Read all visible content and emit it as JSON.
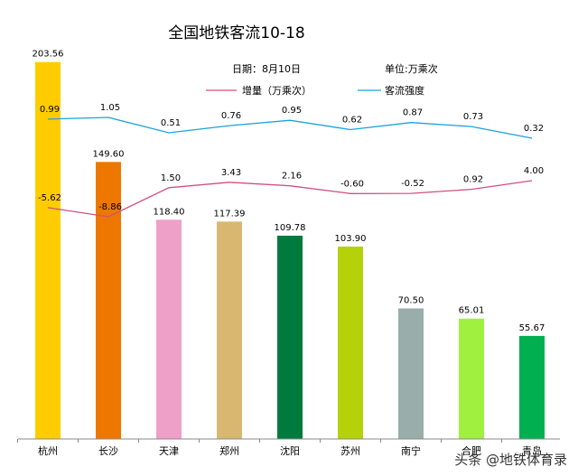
{
  "chart_data": {
    "type": "bar",
    "title": "全国地铁客流10-18",
    "date_label": "日期：8月10日",
    "unit_label": "单位:万乘次",
    "categories": [
      "杭州",
      "长沙",
      "天津",
      "郑州",
      "沈阳",
      "苏州",
      "南宁",
      "合肥",
      "青岛"
    ],
    "values": [
      203.56,
      149.6,
      118.4,
      117.39,
      109.78,
      103.9,
      70.5,
      65.01,
      55.67
    ],
    "value_labels": [
      "203.56",
      "149.60",
      "118.40",
      "117.39",
      "109.78",
      "103.90",
      "70.50",
      "65.01",
      "55.67"
    ],
    "bar_colors": [
      "#FFCC00",
      "#EE7700",
      "#EEA0C8",
      "#D8B870",
      "#007A3D",
      "#B5D10A",
      "#99AEAA",
      "#A0F040",
      "#00B050"
    ],
    "series": [
      {
        "name": "增量（万乘次）",
        "color": "#D05080",
        "values": [
          -5.62,
          -8.86,
          1.5,
          3.43,
          2.16,
          -0.6,
          -0.52,
          0.92,
          4.0
        ],
        "labels": [
          "-5.62",
          "-8.86",
          "1.50",
          "3.43",
          "2.16",
          "-0.60",
          "-0.52",
          "0.92",
          "4.00"
        ]
      },
      {
        "name": "客流强度",
        "color": "#1AA3DD",
        "values": [
          0.99,
          1.05,
          0.51,
          0.76,
          0.95,
          0.62,
          0.87,
          0.73,
          0.32
        ],
        "labels": [
          "0.99",
          "1.05",
          "0.51",
          "0.76",
          "0.95",
          "0.62",
          "0.87",
          "0.73",
          "0.32"
        ]
      }
    ],
    "ylim": [
      0,
      210
    ],
    "legend_position": "top"
  },
  "watermark": "头条 @地铁体育录"
}
